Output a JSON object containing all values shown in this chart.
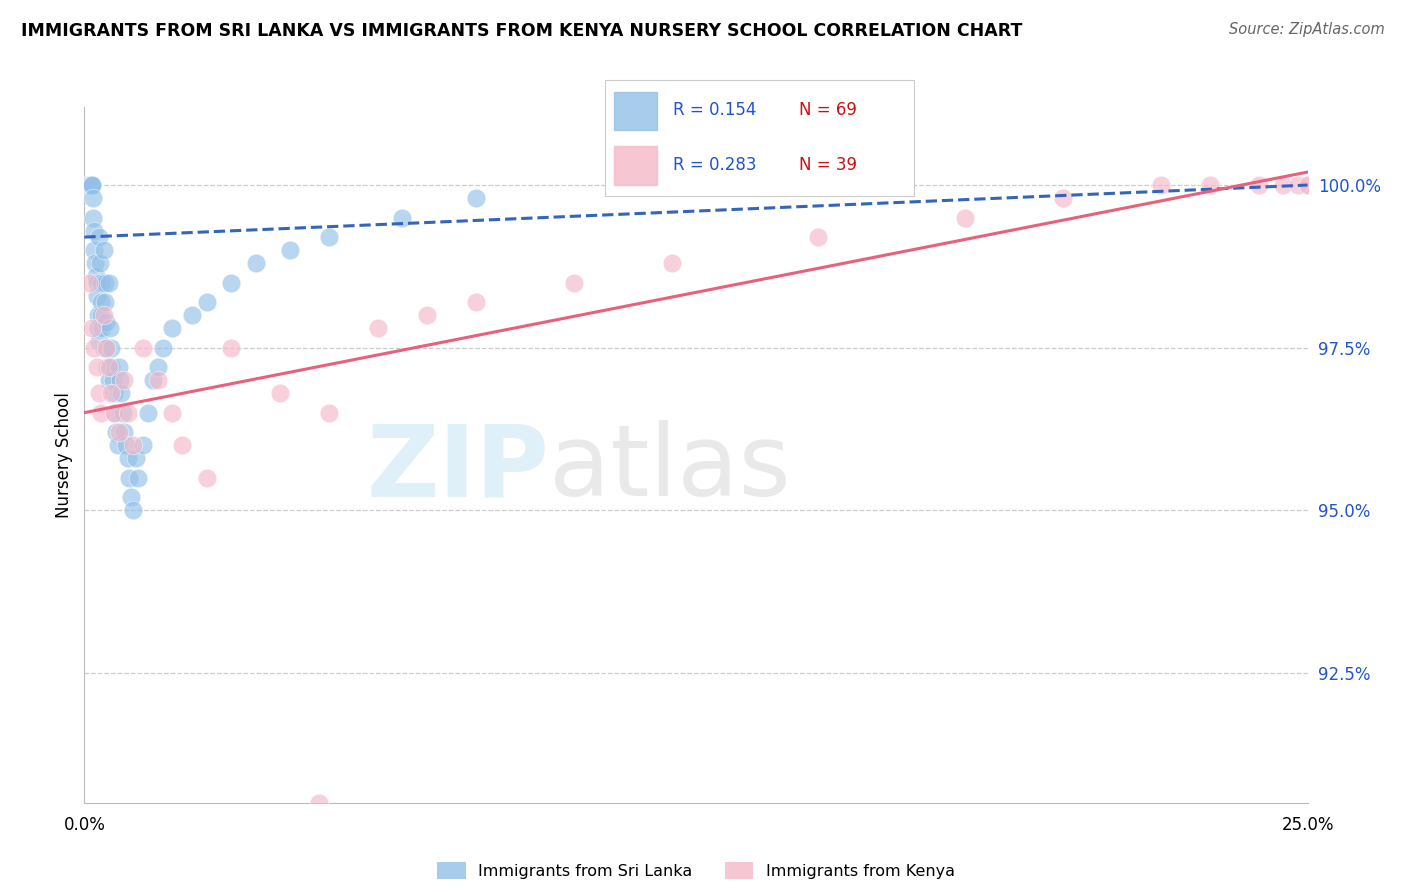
{
  "title": "IMMIGRANTS FROM SRI LANKA VS IMMIGRANTS FROM KENYA NURSERY SCHOOL CORRELATION CHART",
  "source": "Source: ZipAtlas.com",
  "ylabel": "Nursery School",
  "ytick_values": [
    100.0,
    97.5,
    95.0,
    92.5
  ],
  "xlim": [
    0.0,
    25.0
  ],
  "ylim": [
    90.5,
    101.2
  ],
  "legend_blue_R": "R = 0.154",
  "legend_blue_N": "N = 69",
  "legend_pink_R": "R = 0.283",
  "legend_pink_N": "N = 39",
  "blue_color": "#92c0e8",
  "pink_color": "#f5b8c8",
  "blue_line_color": "#3366bb",
  "pink_line_color": "#e8607a",
  "legend_R_color": "#2255cc",
  "legend_N_color": "#cc1111",
  "ytick_color": "#2255cc",
  "sri_lanka_x": [
    0.05,
    0.07,
    0.08,
    0.1,
    0.1,
    0.12,
    0.13,
    0.15,
    0.15,
    0.17,
    0.18,
    0.2,
    0.2,
    0.22,
    0.23,
    0.25,
    0.25,
    0.27,
    0.28,
    0.3,
    0.3,
    0.32,
    0.33,
    0.35,
    0.35,
    0.37,
    0.4,
    0.4,
    0.42,
    0.43,
    0.45,
    0.45,
    0.47,
    0.5,
    0.5,
    0.52,
    0.55,
    0.55,
    0.58,
    0.6,
    0.62,
    0.65,
    0.68,
    0.7,
    0.72,
    0.75,
    0.78,
    0.8,
    0.85,
    0.9,
    0.92,
    0.95,
    1.0,
    1.05,
    1.1,
    1.2,
    1.3,
    1.4,
    1.5,
    1.6,
    1.8,
    2.2,
    2.5,
    3.0,
    3.5,
    4.2,
    5.0,
    6.5,
    8.0
  ],
  "sri_lanka_y": [
    100.0,
    100.0,
    100.0,
    100.0,
    100.0,
    100.0,
    100.0,
    100.0,
    100.0,
    99.8,
    99.5,
    99.3,
    99.0,
    98.8,
    98.6,
    98.5,
    98.3,
    98.0,
    97.8,
    97.6,
    99.2,
    98.8,
    98.5,
    98.2,
    98.0,
    97.8,
    97.5,
    99.0,
    98.5,
    98.2,
    97.9,
    97.5,
    97.2,
    97.0,
    98.5,
    97.8,
    97.5,
    97.2,
    97.0,
    96.8,
    96.5,
    96.2,
    96.0,
    97.2,
    97.0,
    96.8,
    96.5,
    96.2,
    96.0,
    95.8,
    95.5,
    95.2,
    95.0,
    95.8,
    95.5,
    96.0,
    96.5,
    97.0,
    97.2,
    97.5,
    97.8,
    98.0,
    98.2,
    98.5,
    98.8,
    99.0,
    99.2,
    99.5,
    99.8
  ],
  "kenya_x": [
    0.1,
    0.15,
    0.2,
    0.25,
    0.3,
    0.35,
    0.4,
    0.45,
    0.5,
    0.55,
    0.6,
    0.7,
    0.8,
    0.9,
    1.0,
    1.2,
    1.5,
    1.8,
    2.0,
    2.5,
    3.0,
    4.0,
    5.0,
    4.8,
    6.0,
    7.0,
    8.0,
    10.0,
    12.0,
    15.0,
    18.0,
    20.0,
    22.0,
    23.0,
    24.0,
    24.5,
    25.0,
    24.8,
    25.0
  ],
  "kenya_y": [
    98.5,
    97.8,
    97.5,
    97.2,
    96.8,
    96.5,
    98.0,
    97.5,
    97.2,
    96.8,
    96.5,
    96.2,
    97.0,
    96.5,
    96.0,
    97.5,
    97.0,
    96.5,
    96.0,
    95.5,
    97.5,
    96.8,
    96.5,
    90.5,
    97.8,
    98.0,
    98.2,
    98.5,
    98.8,
    99.2,
    99.5,
    99.8,
    100.0,
    100.0,
    100.0,
    100.0,
    100.0,
    100.0,
    100.0
  ],
  "blue_line_x": [
    0.0,
    25.0
  ],
  "blue_line_y": [
    99.2,
    100.0
  ],
  "pink_line_x": [
    0.0,
    25.0
  ],
  "pink_line_y": [
    96.5,
    100.2
  ]
}
